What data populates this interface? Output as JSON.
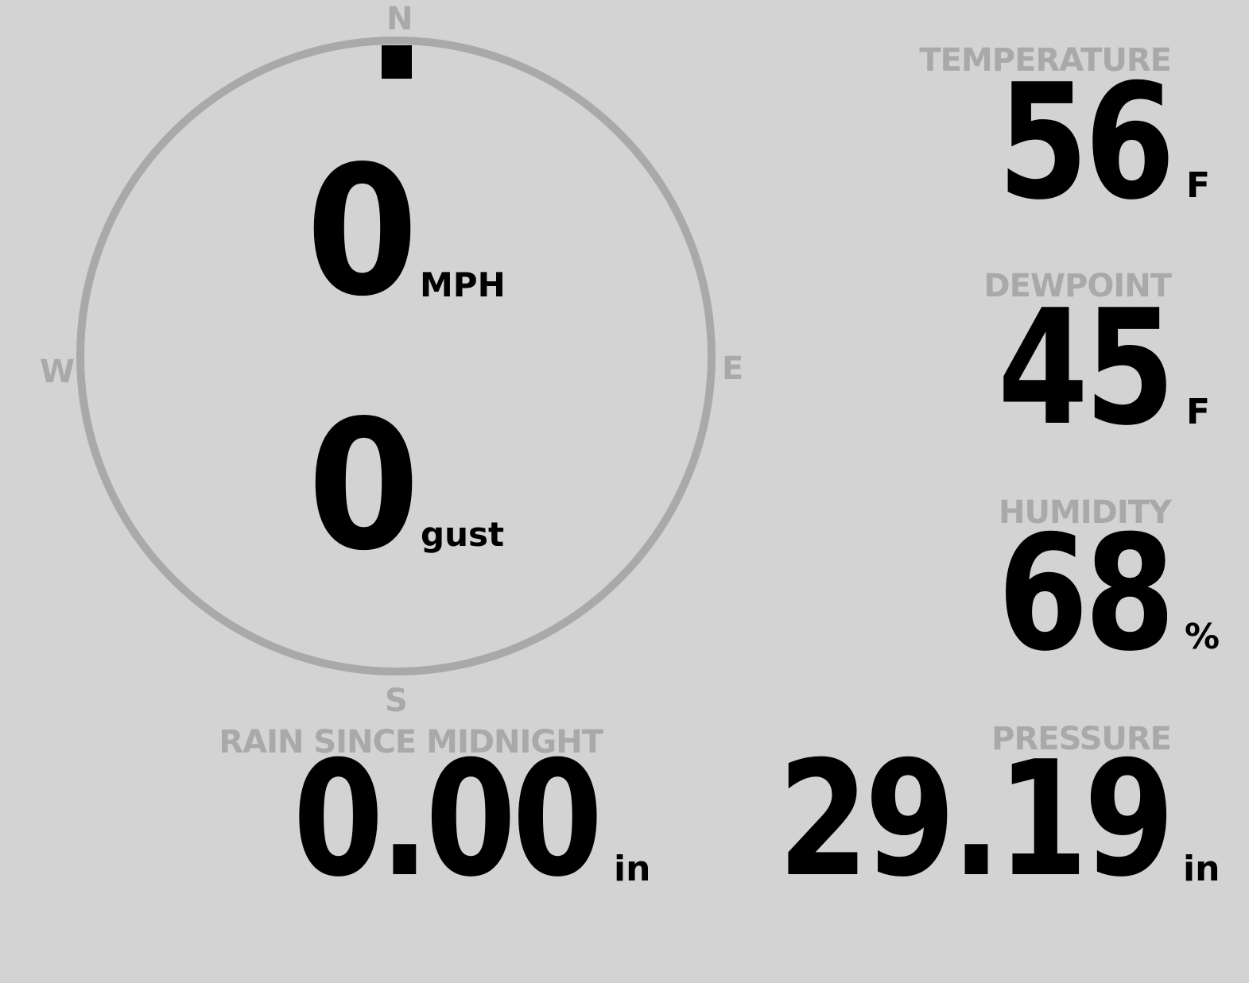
{
  "wind": {
    "speed": "0",
    "speed_unit": "MPH",
    "gust": "0",
    "gust_unit": "gust",
    "direction_degrees": 0,
    "compass": {
      "n": "N",
      "s": "S",
      "e": "E",
      "w": "W"
    }
  },
  "temperature": {
    "label": "TEMPERATURE",
    "value": "56",
    "unit": "F"
  },
  "dewpoint": {
    "label": "DEWPOINT",
    "value": "45",
    "unit": "F"
  },
  "humidity": {
    "label": "HUMIDITY",
    "value": "68",
    "unit": "%"
  },
  "rain": {
    "label": "RAIN SINCE MIDNIGHT",
    "value": "0.00",
    "unit": "in"
  },
  "pressure": {
    "label": "PRESSURE",
    "value": "29.19",
    "unit": "in"
  },
  "colors": {
    "background": "#d3d3d3",
    "label": "#a9a9a9",
    "value": "#000000"
  }
}
